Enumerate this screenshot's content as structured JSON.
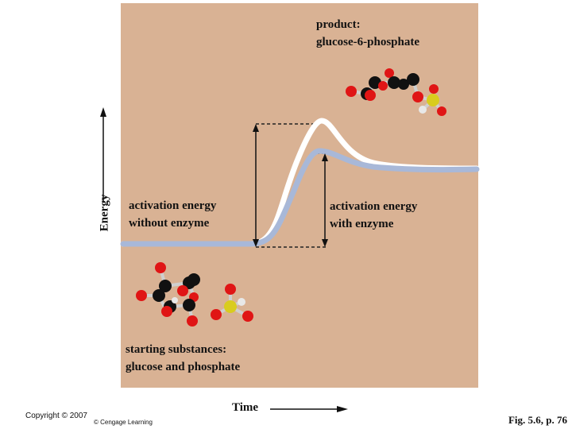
{
  "colors": {
    "panel": "#d9b294",
    "curve_without_enzyme": "#ffffff",
    "curve_with_enzyme": "#a8b8d8",
    "oxygen": "#e01515",
    "carbon": "#111111",
    "hydrogen": "#e8e8e8",
    "phosphorus": "#d9cc1e"
  },
  "axes": {
    "y_label": "Energy",
    "x_label": "Time"
  },
  "labels": {
    "product_line1": "product:",
    "product_line2": "glucose-6-phosphate",
    "without_line1": "activation energy",
    "without_line2": "without enzyme",
    "with_line1": "activation energy",
    "with_line2": "with enzyme",
    "start_line1": "starting substances:",
    "start_line2": "glucose and phosphate"
  },
  "footer": {
    "copyright": "Copyright © 2007",
    "cengage": "© Cengage Learning",
    "figure_ref": "Fig. 5.6, p. 76"
  }
}
